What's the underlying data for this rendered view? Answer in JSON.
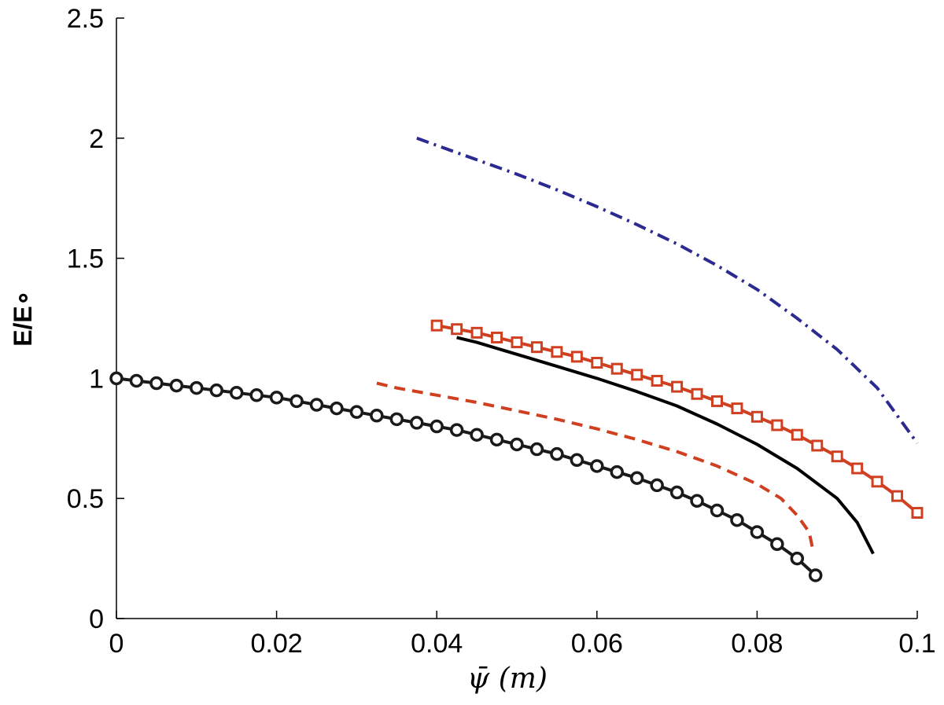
{
  "chart_data": {
    "type": "line",
    "xlim": [
      0,
      0.1
    ],
    "ylim": [
      0,
      2.5
    ],
    "x_ticks": [
      "0",
      "0.02",
      "0.04",
      "0.06",
      "0.08",
      "0.1"
    ],
    "y_ticks": [
      "0",
      "0.5",
      "1",
      "1.5",
      "2",
      "2.5"
    ],
    "ylabel": "E/E∘",
    "xlabel": "ψ̄ (m)",
    "grid": false,
    "legend": "none",
    "series": [
      {
        "color": "#1a1a1a",
        "style": "solid",
        "marker": "circle",
        "x": [
          0,
          0.0025,
          0.005,
          0.0075,
          0.01,
          0.0125,
          0.015,
          0.0175,
          0.02,
          0.0225,
          0.025,
          0.0275,
          0.03,
          0.0325,
          0.035,
          0.0375,
          0.04,
          0.0425,
          0.045,
          0.0475,
          0.05,
          0.0525,
          0.055,
          0.0575,
          0.06,
          0.0625,
          0.065,
          0.0675,
          0.07,
          0.0725,
          0.075,
          0.0775,
          0.08,
          0.0825,
          0.085,
          0.0873
        ],
        "y": [
          1.0,
          0.99,
          0.98,
          0.97,
          0.96,
          0.95,
          0.94,
          0.93,
          0.92,
          0.905,
          0.89,
          0.875,
          0.86,
          0.845,
          0.83,
          0.815,
          0.8,
          0.785,
          0.765,
          0.745,
          0.725,
          0.705,
          0.685,
          0.66,
          0.635,
          0.61,
          0.585,
          0.555,
          0.525,
          0.49,
          0.45,
          0.41,
          0.36,
          0.31,
          0.25,
          0.18
        ]
      },
      {
        "color": "#d04020",
        "style": "dashed",
        "marker": "none",
        "x": [
          0.0325,
          0.035,
          0.04,
          0.045,
          0.05,
          0.055,
          0.06,
          0.065,
          0.07,
          0.075,
          0.08,
          0.083,
          0.085,
          0.0865,
          0.087
        ],
        "y": [
          0.98,
          0.96,
          0.93,
          0.9,
          0.865,
          0.83,
          0.79,
          0.745,
          0.695,
          0.635,
          0.56,
          0.5,
          0.43,
          0.36,
          0.28
        ]
      },
      {
        "color": "#000000",
        "style": "solid",
        "marker": "none",
        "x": [
          0.0425,
          0.045,
          0.05,
          0.055,
          0.06,
          0.065,
          0.07,
          0.075,
          0.08,
          0.085,
          0.09,
          0.0925,
          0.0945
        ],
        "y": [
          1.17,
          1.15,
          1.1,
          1.05,
          1.0,
          0.945,
          0.885,
          0.81,
          0.725,
          0.625,
          0.5,
          0.4,
          0.27
        ]
      },
      {
        "color": "#d04020",
        "style": "solid",
        "marker": "square",
        "x": [
          0.04,
          0.0425,
          0.045,
          0.0475,
          0.05,
          0.0525,
          0.055,
          0.0575,
          0.06,
          0.0625,
          0.065,
          0.0675,
          0.07,
          0.0725,
          0.075,
          0.0775,
          0.08,
          0.0825,
          0.085,
          0.0875,
          0.09,
          0.0925,
          0.095,
          0.0975,
          0.1
        ],
        "y": [
          1.22,
          1.205,
          1.19,
          1.17,
          1.15,
          1.13,
          1.11,
          1.09,
          1.065,
          1.04,
          1.015,
          0.99,
          0.965,
          0.935,
          0.905,
          0.875,
          0.84,
          0.805,
          0.765,
          0.72,
          0.675,
          0.625,
          0.57,
          0.51,
          0.44
        ]
      },
      {
        "color": "#2a2a90",
        "style": "dashdot",
        "marker": "none",
        "x": [
          0.0375,
          0.04,
          0.045,
          0.05,
          0.055,
          0.06,
          0.065,
          0.07,
          0.075,
          0.08,
          0.085,
          0.09,
          0.095,
          0.1
        ],
        "y": [
          2.0,
          1.97,
          1.91,
          1.85,
          1.785,
          1.715,
          1.64,
          1.56,
          1.47,
          1.37,
          1.25,
          1.12,
          0.96,
          0.73
        ]
      }
    ]
  }
}
